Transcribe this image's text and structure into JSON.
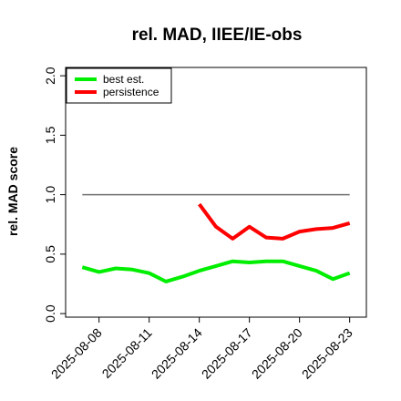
{
  "chart_data": {
    "type": "line",
    "title": "rel. MAD, IIEE/IE-obs",
    "ylabel": "rel. MAD score",
    "xlabel": "",
    "ylim": [
      -0.03,
      2.07
    ],
    "xlim": [
      "2025-08-06",
      "2025-08-24"
    ],
    "x_ticks": [
      "2025-08-08",
      "2025-08-11",
      "2025-08-14",
      "2025-08-17",
      "2025-08-20",
      "2025-08-23"
    ],
    "y_ticks": [
      "0.0",
      "0.5",
      "1.0",
      "1.5",
      "2.0"
    ],
    "reference_line": {
      "value": 1.0,
      "from": "2025-08-07",
      "to": "2025-08-23",
      "color": "#707070"
    },
    "legend": {
      "position": "top-left"
    },
    "grid": false,
    "series": [
      {
        "name": "best est.",
        "color": "#00ee00",
        "x": [
          "2025-08-07",
          "2025-08-08",
          "2025-08-09",
          "2025-08-10",
          "2025-08-11",
          "2025-08-12",
          "2025-08-13",
          "2025-08-14",
          "2025-08-15",
          "2025-08-16",
          "2025-08-17",
          "2025-08-18",
          "2025-08-19",
          "2025-08-20",
          "2025-08-21",
          "2025-08-22",
          "2025-08-23"
        ],
        "values": [
          0.39,
          0.35,
          0.38,
          0.37,
          0.34,
          0.27,
          0.31,
          0.36,
          0.4,
          0.44,
          0.43,
          0.44,
          0.44,
          0.4,
          0.36,
          0.29,
          0.34
        ]
      },
      {
        "name": "persistence",
        "color": "#ff0000",
        "x": [
          "2025-08-14",
          "2025-08-15",
          "2025-08-16",
          "2025-08-17",
          "2025-08-18",
          "2025-08-19",
          "2025-08-20",
          "2025-08-21",
          "2025-08-22",
          "2025-08-23"
        ],
        "values": [
          0.92,
          0.73,
          0.63,
          0.73,
          0.64,
          0.63,
          0.69,
          0.71,
          0.72,
          0.76
        ]
      }
    ]
  }
}
